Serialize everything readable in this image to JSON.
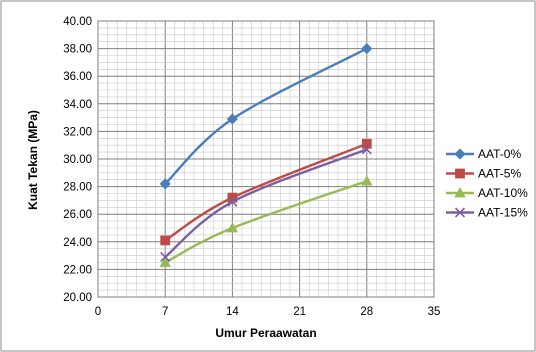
{
  "chart_data": {
    "type": "line",
    "title": "",
    "xlabel": "Umur Peraawatan",
    "ylabel": "Kuat Tekan (MPa)",
    "xlim": [
      0,
      35
    ],
    "ylim": [
      20,
      40
    ],
    "x_ticks": [
      "0",
      "7",
      "14",
      "21",
      "28",
      "35"
    ],
    "y_ticks": [
      "20.00",
      "22.00",
      "24.00",
      "26.00",
      "28.00",
      "30.00",
      "32.00",
      "34.00",
      "36.00",
      "38.00",
      "40.00"
    ],
    "x_tick_values": [
      0,
      7,
      14,
      21,
      28,
      35
    ],
    "y_tick_values": [
      20,
      22,
      24,
      26,
      28,
      30,
      32,
      34,
      36,
      38,
      40
    ],
    "grid": true,
    "legend_position": "right",
    "series": [
      {
        "name": "AAT-0%",
        "color": "#4a7ebb",
        "marker": "diamond",
        "x": [
          7,
          14,
          28
        ],
        "y": [
          28.2,
          32.9,
          38.0
        ]
      },
      {
        "name": "AAT-5%",
        "color": "#be4b48",
        "marker": "square",
        "x": [
          7,
          14,
          28
        ],
        "y": [
          24.1,
          27.2,
          31.1
        ]
      },
      {
        "name": "AAT-10%",
        "color": "#98b954",
        "marker": "triangle",
        "x": [
          7,
          14,
          28
        ],
        "y": [
          22.5,
          25.0,
          28.4
        ]
      },
      {
        "name": "AAT-15%",
        "color": "#7d5fa0",
        "marker": "x",
        "x": [
          7,
          14,
          28
        ],
        "y": [
          22.9,
          26.9,
          30.7
        ]
      }
    ]
  }
}
